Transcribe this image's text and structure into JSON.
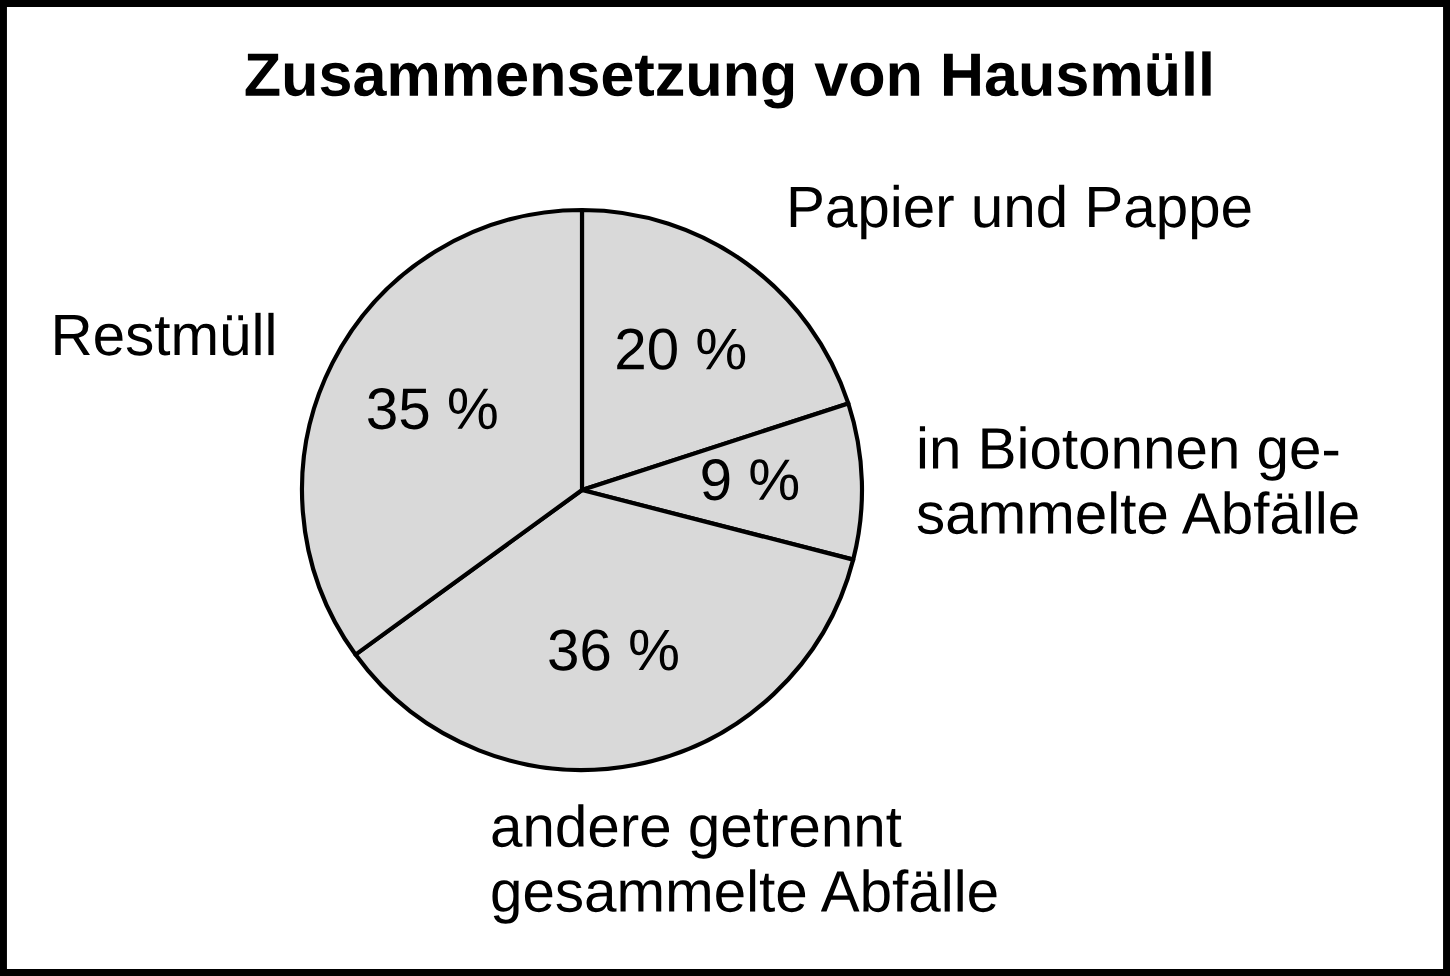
{
  "chart_data": {
    "type": "pie",
    "title": "Zusammensetzung von Hausmüll",
    "categories": [
      "Papier und Pappe",
      "in Biotonnen ge-\nsammelte Abfälle",
      "andere getrennt\ngesammelte Abfälle",
      "Restmüll"
    ],
    "values": [
      20,
      9,
      36,
      35
    ],
    "value_labels": [
      "20 %",
      "9 %",
      "36 %",
      "35 %"
    ],
    "colors": [
      "#d9d9d9",
      "#d9d9d9",
      "#d9d9d9",
      "#d9d9d9"
    ]
  }
}
